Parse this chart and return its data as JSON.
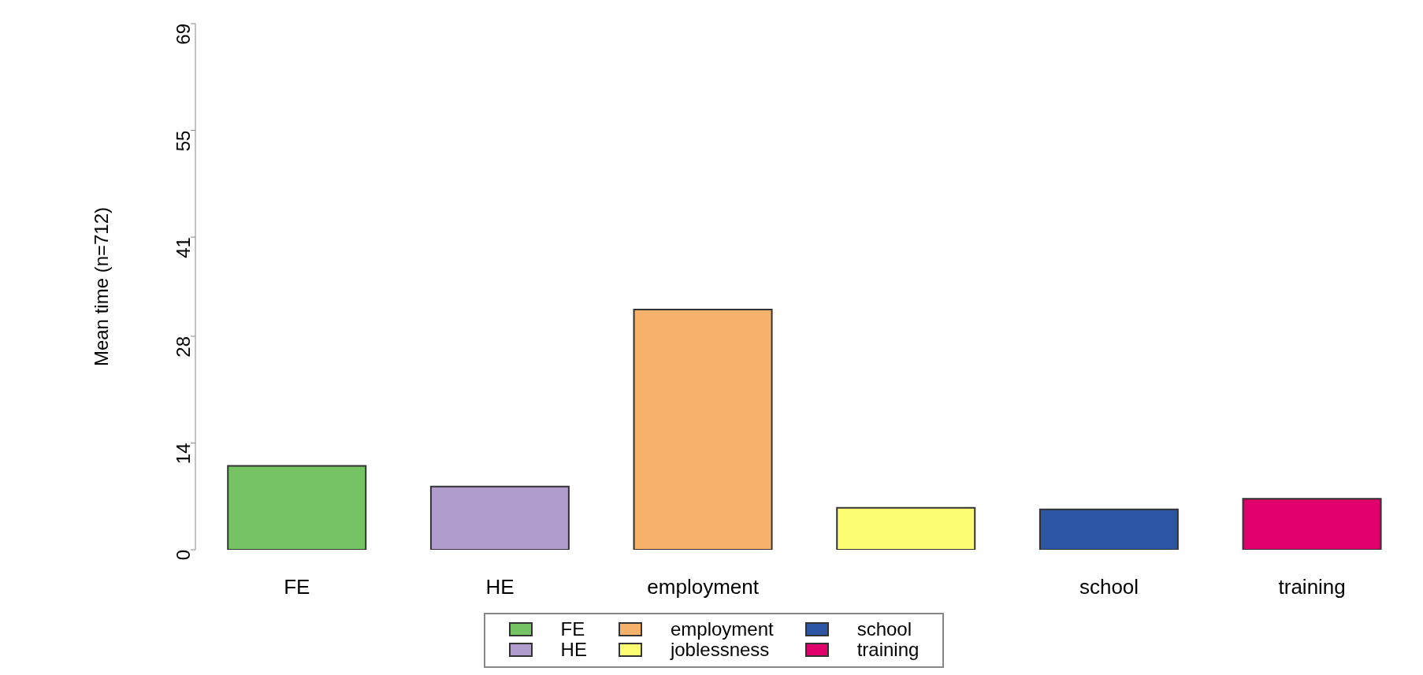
{
  "chart_data": {
    "type": "bar",
    "ylabel": "Mean time (n=712)",
    "categories": [
      "FE",
      "HE",
      "employment",
      null,
      "school",
      "training"
    ],
    "stacked": true,
    "series": [
      {
        "name": "FE",
        "color": "#75c363",
        "values": [
          11,
          null,
          null,
          null,
          null,
          null
        ]
      },
      {
        "name": "HE",
        "color": "#b09dce",
        "values": [
          null,
          8.3,
          null,
          null,
          null,
          null
        ]
      },
      {
        "name": "employment",
        "color": "#f6b26b",
        "values": [
          null,
          null,
          31.5,
          null,
          null,
          null
        ]
      },
      {
        "name": "joblessness",
        "color": "#fdfd74",
        "values": [
          null,
          null,
          null,
          5.5,
          null,
          null
        ]
      },
      {
        "name": "school",
        "color": "#2c56a4",
        "values": [
          null,
          null,
          null,
          null,
          5.3,
          null
        ]
      },
      {
        "name": "training",
        "color": "#e0006c",
        "values": [
          null,
          null,
          null,
          null,
          null,
          6.7
        ]
      }
    ],
    "ylim": [
      0,
      69
    ],
    "yticks": [
      0,
      14,
      28,
      41,
      55,
      69
    ],
    "grid": false,
    "legend": "bottom"
  }
}
